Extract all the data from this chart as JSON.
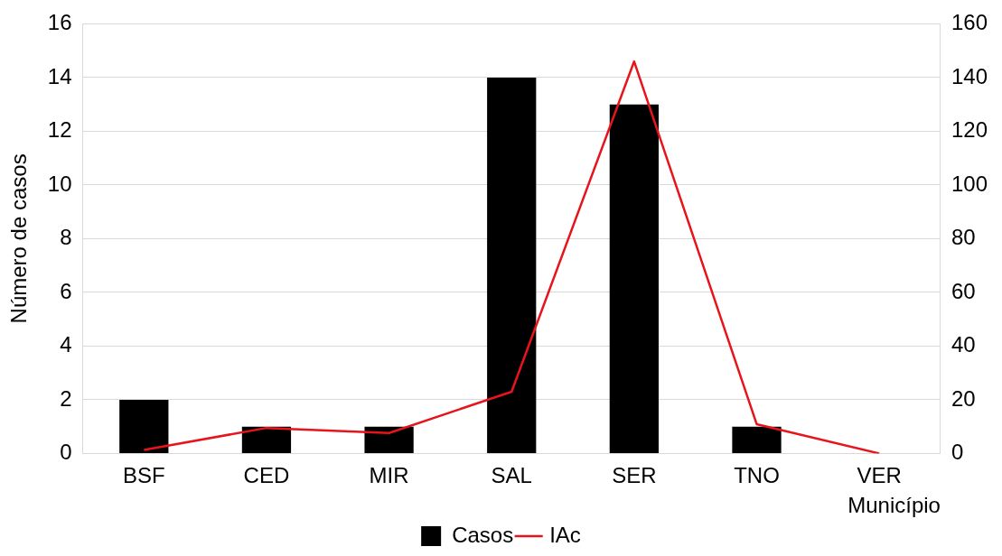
{
  "chart_data": {
    "type": "bar",
    "xlabel": "Município",
    "ylabel": "Número de casos",
    "categories": [
      "BSF",
      "CED",
      "MIR",
      "SAL",
      "SER",
      "TNO",
      "VER"
    ],
    "series": [
      {
        "name": "Casos",
        "color": "#000000",
        "values": [
          2,
          1,
          1,
          14,
          13,
          1,
          0
        ]
      },
      {
        "name": "IAc",
        "type": "line",
        "axis": "y2",
        "color": "#e8141b",
        "values": [
          1.3,
          9.5,
          7.6,
          23,
          146,
          10.9,
          0
        ]
      }
    ],
    "ylim": [
      0,
      16
    ],
    "yticks": [
      0,
      2,
      4,
      6,
      8,
      10,
      12,
      14,
      16
    ],
    "y2lim": [
      0,
      160
    ],
    "y2ticks": [
      0,
      20,
      40,
      60,
      80,
      100,
      120,
      140,
      160
    ],
    "grid": "y",
    "legend": "bottom",
    "marker": "none",
    "line_style": "solid"
  }
}
